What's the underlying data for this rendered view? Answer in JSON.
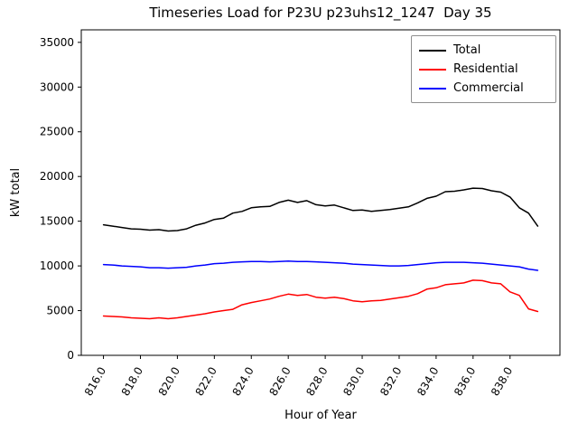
{
  "chart_data": {
    "type": "line",
    "title": "Timeseries Load for P23U p23uhs12_1247  Day 35",
    "xlabel": "Hour of Year",
    "ylabel": "kW total",
    "grid": false,
    "legend_position": "upper right",
    "xlim": [
      814.8,
      840.7
    ],
    "ylim": [
      0,
      36400
    ],
    "xticks": [
      816.0,
      818.0,
      820.0,
      822.0,
      824.0,
      826.0,
      828.0,
      830.0,
      832.0,
      834.0,
      836.0,
      838.0
    ],
    "xtick_labels": [
      "816.0",
      "818.0",
      "820.0",
      "822.0",
      "824.0",
      "826.0",
      "828.0",
      "830.0",
      "832.0",
      "834.0",
      "836.0",
      "838.0"
    ],
    "yticks": [
      0,
      5000,
      10000,
      15000,
      20000,
      25000,
      30000,
      35000
    ],
    "x": [
      816.0,
      816.5,
      817.0,
      817.5,
      818.0,
      818.5,
      819.0,
      819.5,
      820.0,
      820.5,
      821.0,
      821.5,
      822.0,
      822.5,
      823.0,
      823.5,
      824.0,
      824.5,
      825.0,
      825.5,
      826.0,
      826.5,
      827.0,
      827.5,
      828.0,
      828.5,
      829.0,
      829.5,
      830.0,
      830.5,
      831.0,
      831.5,
      832.0,
      832.5,
      833.0,
      833.5,
      834.0,
      834.5,
      835.0,
      835.5,
      836.0,
      836.5,
      837.0,
      837.5,
      838.0,
      838.5,
      839.0,
      839.5
    ],
    "series": [
      {
        "name": "Total",
        "color": "#000000",
        "values": [
          14600,
          14450,
          14300,
          14150,
          14100,
          14000,
          14050,
          13900,
          13950,
          14150,
          14550,
          14800,
          15200,
          15350,
          15900,
          16100,
          16500,
          16600,
          16650,
          17100,
          17350,
          17100,
          17300,
          16850,
          16700,
          16800,
          16500,
          16200,
          16250,
          16100,
          16200,
          16300,
          16450,
          16600,
          17050,
          17550,
          17800,
          18300,
          18350,
          18500,
          18700,
          18650,
          18400,
          18250,
          17700,
          16500,
          15900,
          14450
        ]
      },
      {
        "name": "Residential",
        "color": "#ff0000",
        "values": [
          4400,
          4350,
          4300,
          4200,
          4150,
          4100,
          4200,
          4100,
          4200,
          4350,
          4500,
          4650,
          4850,
          5000,
          5150,
          5650,
          5900,
          6100,
          6300,
          6600,
          6850,
          6700,
          6800,
          6500,
          6400,
          6500,
          6350,
          6100,
          6000,
          6100,
          6150,
          6300,
          6450,
          6600,
          6900,
          7400,
          7550,
          7900,
          8000,
          8100,
          8400,
          8350,
          8100,
          8000,
          7100,
          6700,
          5200,
          4900
        ]
      },
      {
        "name": "Commercial",
        "color": "#0000ff",
        "values": [
          10150,
          10100,
          10000,
          9950,
          9900,
          9800,
          9800,
          9750,
          9800,
          9850,
          10000,
          10100,
          10250,
          10300,
          10400,
          10450,
          10500,
          10500,
          10450,
          10500,
          10550,
          10500,
          10500,
          10450,
          10400,
          10350,
          10300,
          10200,
          10150,
          10100,
          10050,
          10000,
          10000,
          10050,
          10150,
          10250,
          10350,
          10400,
          10400,
          10400,
          10350,
          10300,
          10200,
          10100,
          10000,
          9900,
          9650,
          9500
        ]
      }
    ]
  }
}
